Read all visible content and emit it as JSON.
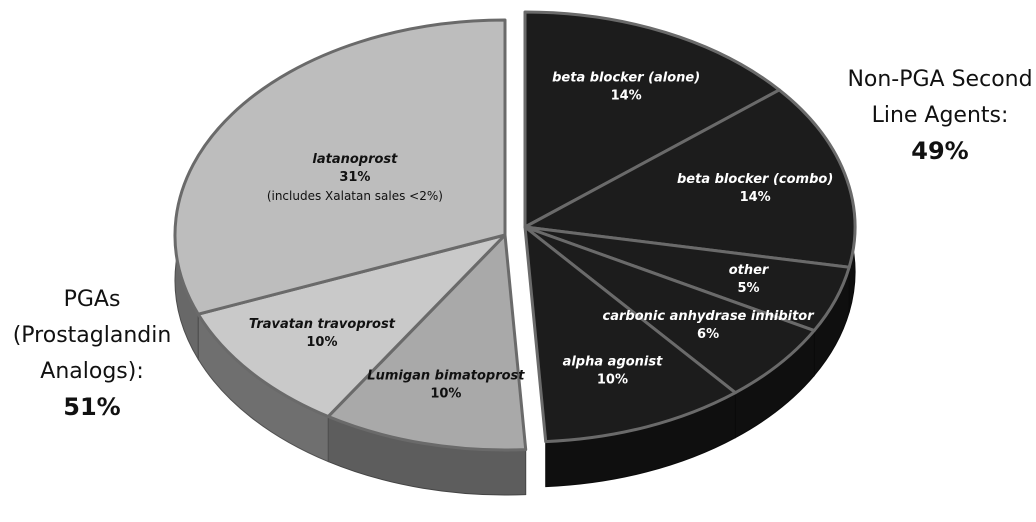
{
  "chart_data": {
    "type": "pie",
    "categories": [
      "beta blocker (alone)",
      "beta blocker (combo)",
      "other",
      "carbonic anhydrase inhibitor",
      "alpha agonist",
      "Lumigan bimatoprost",
      "Travatan travoprost",
      "latanoprost"
    ],
    "values": [
      14,
      14,
      5,
      6,
      10,
      10,
      10,
      31
    ],
    "value_labels": [
      "14%",
      "14%",
      "5%",
      "6%",
      "10%",
      "10%",
      "10%",
      "31%"
    ],
    "colors": [
      "#1c1c1c",
      "#1c1c1c",
      "#1c1c1c",
      "#1c1c1c",
      "#1c1c1c",
      "#a9a9a9",
      "#c9c9c9",
      "#bdbdbd"
    ],
    "annotations": [
      "(includes Xalatan sales <2%)"
    ],
    "groups": [
      {
        "label_lines": [
          "Non-PGA Second",
          "Line Agents:"
        ],
        "value": 49,
        "value_label": "49%"
      },
      {
        "label_lines": [
          "PGAs",
          "(Prostaglandin",
          "Analogs):"
        ],
        "value": 51,
        "value_label": "51%"
      }
    ]
  }
}
